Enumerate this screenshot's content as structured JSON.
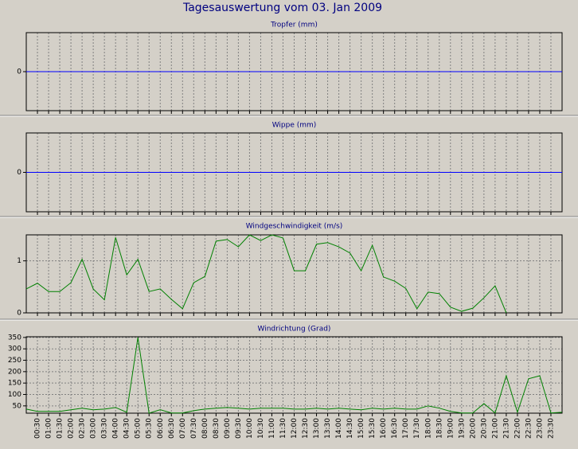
{
  "title": "Tagesauswertung vom 03. Jan 2009",
  "chart_data": [
    {
      "type": "line",
      "title": "Tropfer (mm)",
      "ylim": [
        -1,
        1
      ],
      "yticks": [
        0
      ],
      "grid_y": false,
      "series": [
        {
          "color": "#0000ff",
          "values": [
            0,
            0,
            0,
            0,
            0,
            0,
            0,
            0,
            0,
            0,
            0,
            0,
            0,
            0,
            0,
            0,
            0,
            0,
            0,
            0,
            0,
            0,
            0,
            0,
            0,
            0,
            0,
            0,
            0,
            0,
            0,
            0,
            0,
            0,
            0,
            0,
            0,
            0,
            0,
            0,
            0,
            0,
            0,
            0,
            0,
            0,
            0,
            0,
            0
          ]
        }
      ]
    },
    {
      "type": "line",
      "title": "Wippe (mm)",
      "ylim": [
        -1,
        1
      ],
      "yticks": [
        0
      ],
      "grid_y": false,
      "series": [
        {
          "color": "#0000ff",
          "values": [
            0,
            0,
            0,
            0,
            0,
            0,
            0,
            0,
            0,
            0,
            0,
            0,
            0,
            0,
            0,
            0,
            0,
            0,
            0,
            0,
            0,
            0,
            0,
            0,
            0,
            0,
            0,
            0,
            0,
            0,
            0,
            0,
            0,
            0,
            0,
            0,
            0,
            0,
            0,
            0,
            0,
            0,
            0,
            0,
            0,
            0,
            0,
            0,
            0
          ]
        }
      ]
    },
    {
      "type": "line",
      "title": "Windgeschwindigkeit (m/s)",
      "ylim": [
        0,
        1.5
      ],
      "yticks": [
        0,
        1
      ],
      "grid_y": true,
      "series": [
        {
          "color": "#008000",
          "values": [
            0.46,
            0.57,
            0.41,
            0.41,
            0.58,
            1.03,
            0.46,
            0.25,
            1.45,
            0.73,
            1.03,
            0.41,
            0.46,
            0.26,
            0.08,
            0.58,
            0.7,
            1.38,
            1.41,
            1.27,
            1.5,
            1.39,
            1.5,
            1.44,
            0.81,
            0.81,
            1.32,
            1.35,
            1.27,
            1.15,
            0.81,
            1.3,
            0.69,
            0.61,
            0.47,
            0.08,
            0.4,
            0.37,
            0.11,
            0.03,
            0.09,
            0.29,
            0.52,
            0,
            null,
            null,
            null,
            null,
            null
          ]
        }
      ]
    },
    {
      "type": "line",
      "title": "Windrichtung (Grad)",
      "ylim": [
        18,
        353
      ],
      "yticks": [
        50,
        100,
        150,
        200,
        250,
        300,
        350
      ],
      "grid_y": true,
      "categories": [
        null,
        "00:30",
        "01:00",
        "01:30",
        "02:00",
        "02:30",
        "03:00",
        "03:30",
        "04:00",
        "04:30",
        "05:00",
        "05:30",
        "06:00",
        "06:30",
        "07:00",
        "07:30",
        "08:00",
        "08:30",
        "09:00",
        "09:30",
        "10:00",
        "10:30",
        "11:00",
        "11:30",
        "12:00",
        "12:30",
        "13:00",
        "13:30",
        "14:00",
        "14:30",
        "15:00",
        "15:30",
        "16:00",
        "16:30",
        "17:00",
        "17:30",
        "18:00",
        "18:30",
        "19:00",
        "19:30",
        "20:00",
        "20:30",
        "21:00",
        "21:30",
        "22:00",
        "22:30",
        "23:00",
        "23:30",
        null
      ],
      "series": [
        {
          "color": "#008000",
          "values": [
            36,
            26,
            26,
            26,
            33,
            40,
            33,
            36,
            43,
            22,
            350,
            18,
            33,
            19,
            19,
            29,
            36,
            40,
            43,
            40,
            36,
            40,
            40,
            40,
            36,
            36,
            40,
            36,
            40,
            36,
            33,
            40,
            36,
            40,
            36,
            36,
            50,
            40,
            26,
            19,
            19,
            60,
            19,
            182,
            22,
            169,
            182,
            19,
            22
          ]
        }
      ]
    }
  ]
}
